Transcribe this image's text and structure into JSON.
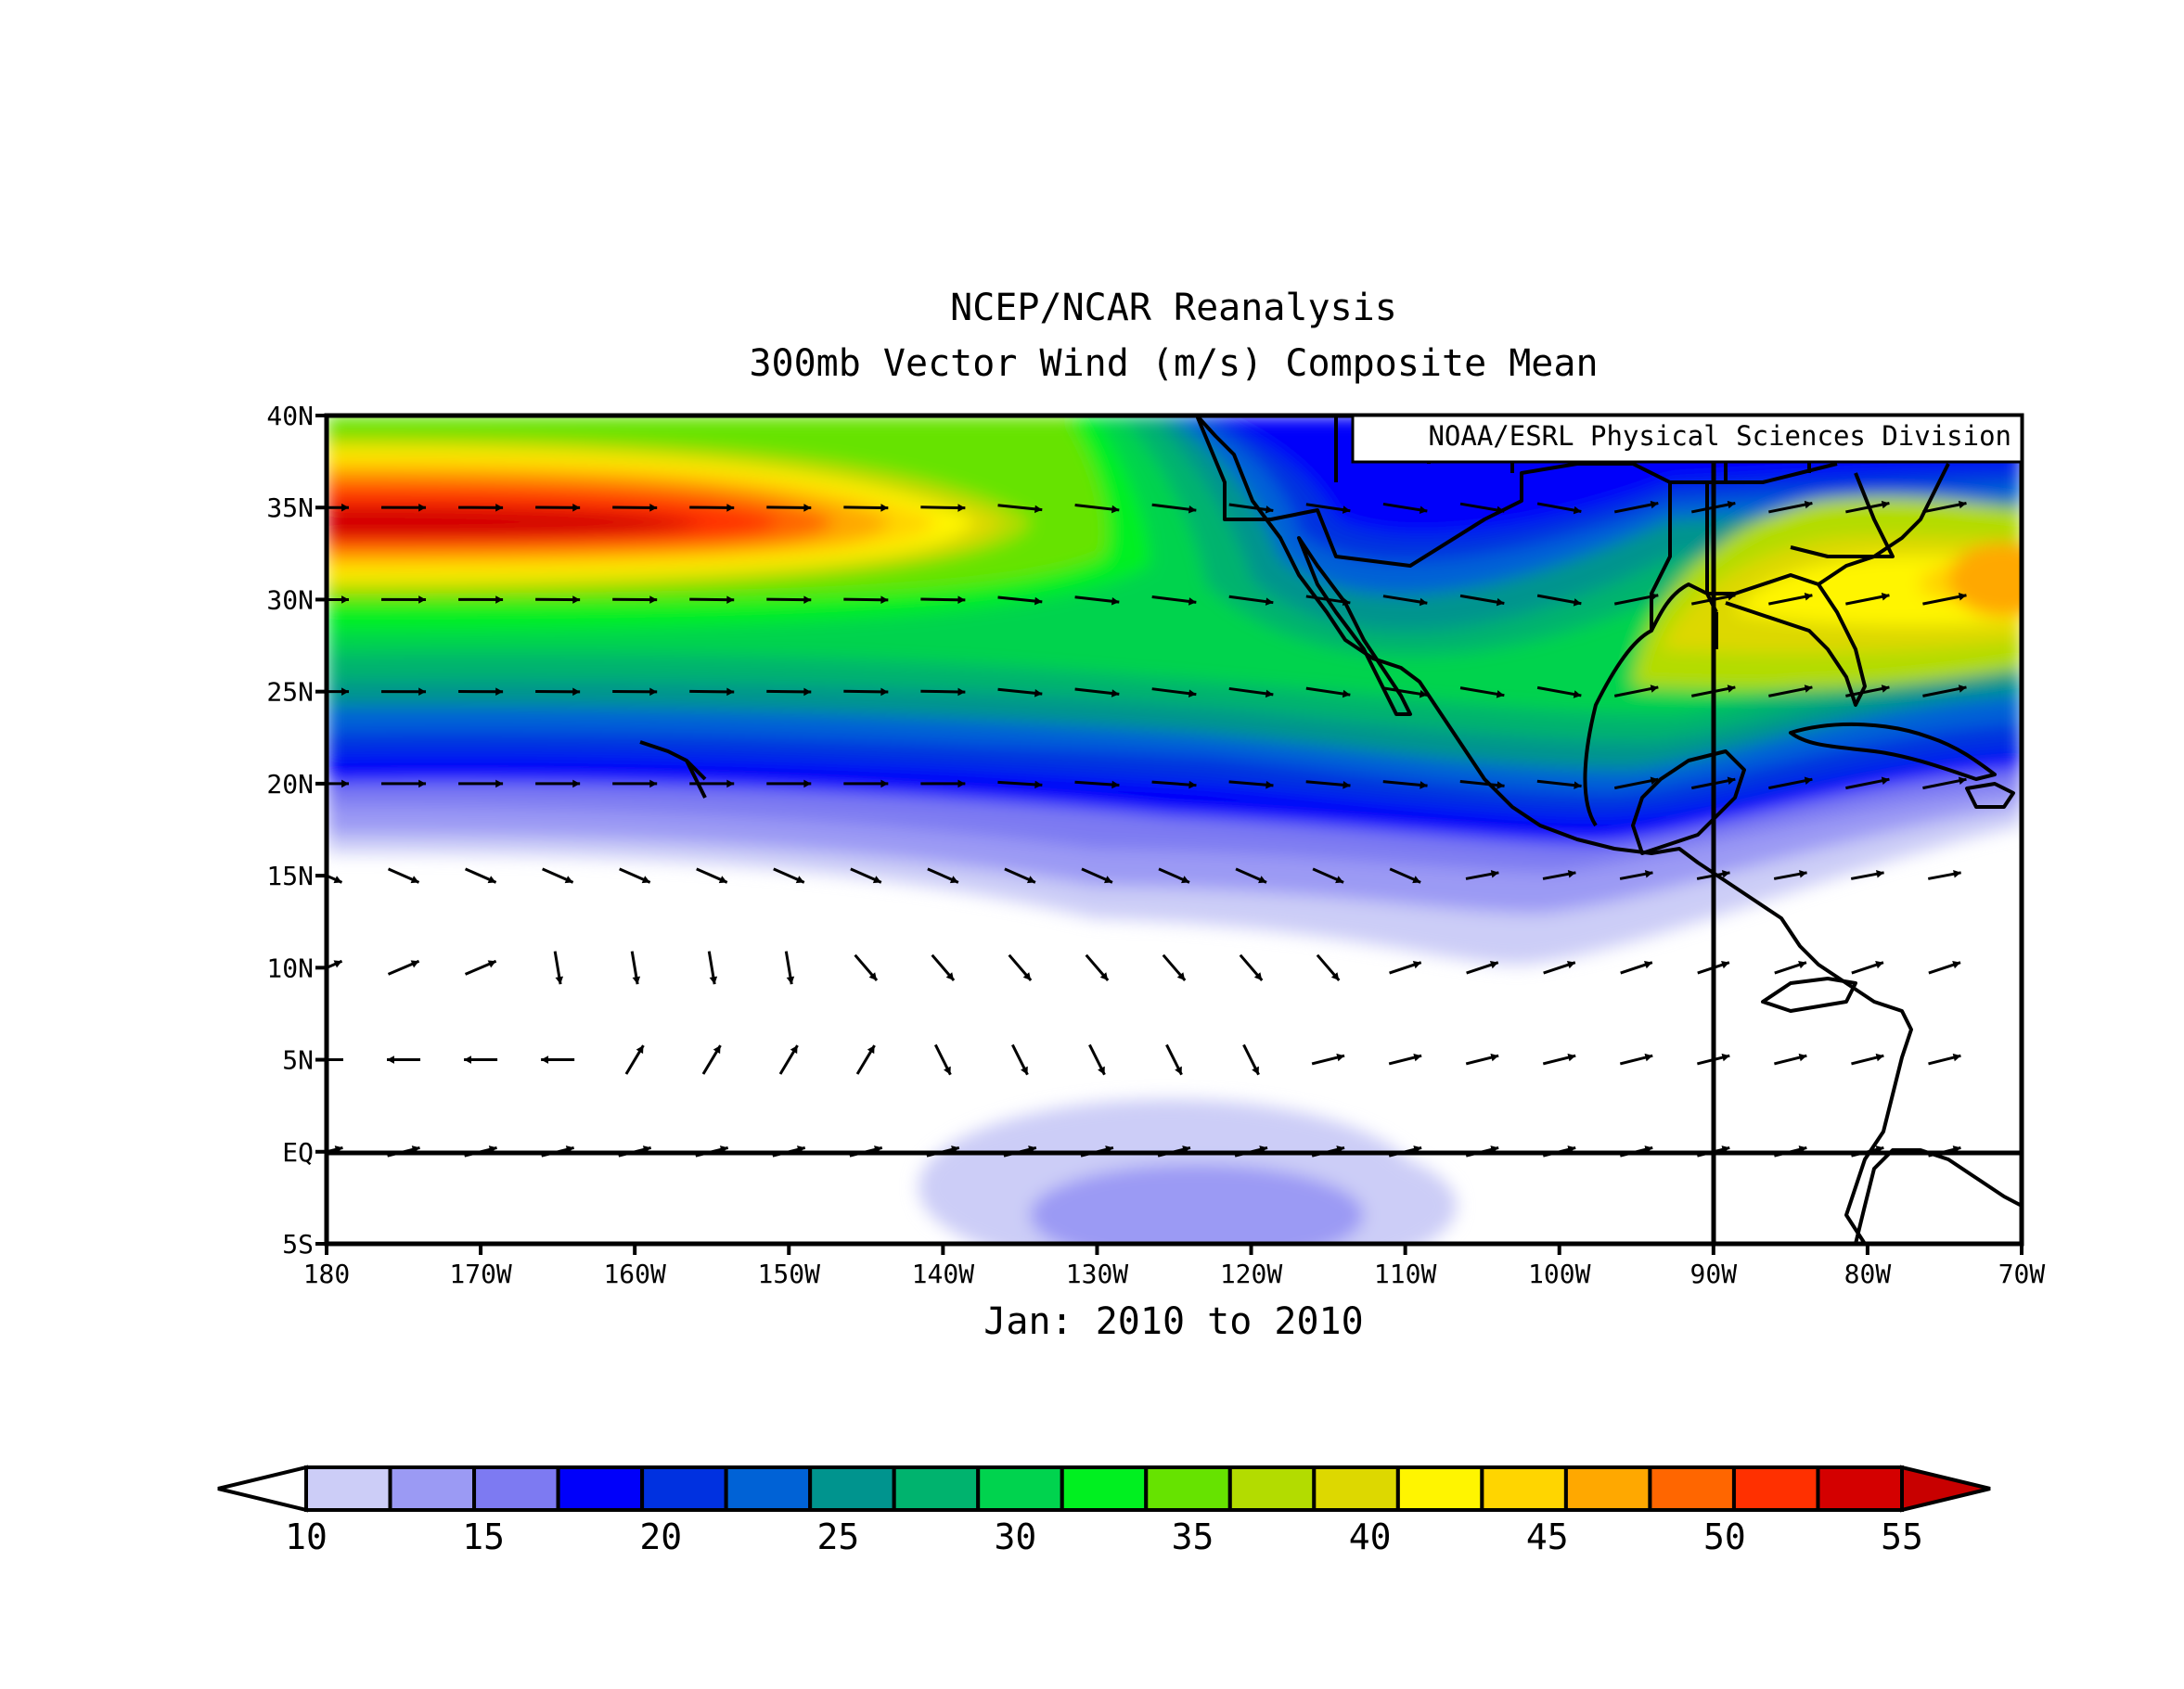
{
  "title": "NCEP/NCAR Reanalysis",
  "subtitle": "300mb Vector Wind (m/s) Composite Mean",
  "credit": "NOAA/ESRL Physical Sciences Division",
  "date_range": "Jan: 2010 to 2010",
  "map": {
    "lon_range": [
      -180,
      -70
    ],
    "lat_range": [
      -5,
      40
    ],
    "reference_lines": {
      "lat": 0,
      "lon": -90
    },
    "lat_ticks": [
      {
        "value": 40,
        "label": "40N"
      },
      {
        "value": 35,
        "label": "35N"
      },
      {
        "value": 30,
        "label": "30N"
      },
      {
        "value": 25,
        "label": "25N"
      },
      {
        "value": 20,
        "label": "20N"
      },
      {
        "value": 15,
        "label": "15N"
      },
      {
        "value": 10,
        "label": "10N"
      },
      {
        "value": 5,
        "label": "5N"
      },
      {
        "value": 0,
        "label": "EQ"
      },
      {
        "value": -5,
        "label": "5S"
      }
    ],
    "lon_ticks": [
      {
        "value": -180,
        "label": "180"
      },
      {
        "value": -170,
        "label": "170W"
      },
      {
        "value": -160,
        "label": "160W"
      },
      {
        "value": -150,
        "label": "150W"
      },
      {
        "value": -140,
        "label": "140W"
      },
      {
        "value": -130,
        "label": "130W"
      },
      {
        "value": -120,
        "label": "120W"
      },
      {
        "value": -110,
        "label": "110W"
      },
      {
        "value": -100,
        "label": "100W"
      },
      {
        "value": -90,
        "label": "90W"
      },
      {
        "value": -80,
        "label": "80W"
      },
      {
        "value": -70,
        "label": "70W"
      }
    ]
  },
  "colorbar": {
    "colors": [
      "#cccdf7",
      "#9b9af4",
      "#7d7af2",
      "#0000fa",
      "#0031e0",
      "#0062d6",
      "#00948e",
      "#00b36e",
      "#00d34e",
      "#00f020",
      "#66e300",
      "#b3dc00",
      "#ddd800",
      "#fff500",
      "#ffd500",
      "#ffa800",
      "#ff6600",
      "#ff3000",
      "#d40000"
    ],
    "under_color": "#ffffff",
    "over_color": "#c80000",
    "levels": [
      10,
      12.5,
      15,
      17.5,
      20,
      22.5,
      25,
      27.5,
      30,
      32.5,
      35,
      37.5,
      40,
      42.5,
      45,
      47.5,
      50,
      52.5,
      55
    ],
    "labels": [
      {
        "value": 10,
        "text": "10"
      },
      {
        "value": 15,
        "text": "15"
      },
      {
        "value": 20,
        "text": "20"
      },
      {
        "value": 25,
        "text": "25"
      },
      {
        "value": 30,
        "text": "30"
      },
      {
        "value": 35,
        "text": "35"
      },
      {
        "value": 40,
        "text": "40"
      },
      {
        "value": 45,
        "text": "45"
      },
      {
        "value": 50,
        "text": "50"
      },
      {
        "value": 55,
        "text": "55"
      }
    ]
  }
}
